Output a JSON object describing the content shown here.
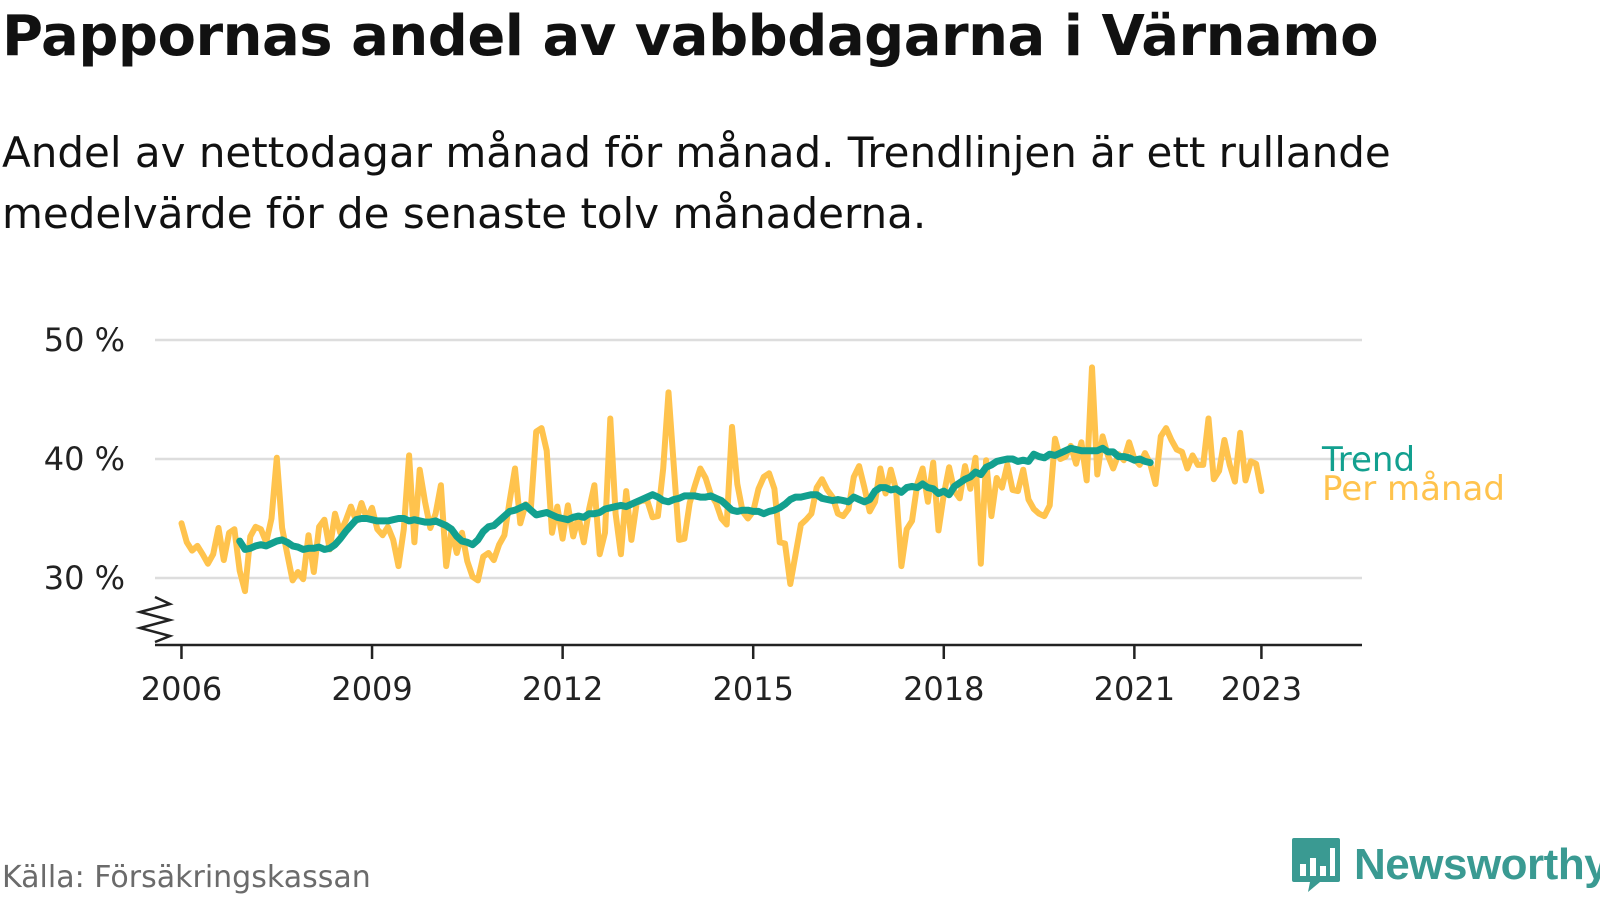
{
  "title": "Pappornas andel av vabbdagarna i Värnamo",
  "subtitle": "Andel av nettodagar månad för månad. Trendlinjen är ett rullande medelvärde för de senaste tolv månaderna.",
  "source": "Källa: Försäkringskassan",
  "brand": {
    "name": "Newsworthy",
    "color": "#3a9a92",
    "icon": "bar-chart-chat-icon"
  },
  "colors": {
    "trend": "#12a08f",
    "monthly": "#ffc34d",
    "grid": "#dddddd",
    "axis": "#222222"
  },
  "chart_data": {
    "type": "line",
    "title": "Pappornas andel av vabbdagarna i Värnamo",
    "xlabel": "",
    "ylabel": "",
    "x_ticks": [
      "2006",
      "2009",
      "2012",
      "2015",
      "2018",
      "2021",
      "2023"
    ],
    "x_tick_years": [
      2006,
      2009,
      2012,
      2015,
      2018,
      2021,
      2023
    ],
    "y_ticks": [
      "30 %",
      "40 %",
      "50 %"
    ],
    "y_tick_values": [
      30,
      40,
      50
    ],
    "ylim": [
      25,
      50
    ],
    "xlim": [
      "2005-08",
      "2024-08"
    ],
    "grid": true,
    "y_axis_broken": true,
    "series": [
      {
        "name": "Per månad",
        "start": "2006-01",
        "values": [
          34.6,
          33.0,
          32.3,
          32.7,
          32.0,
          31.2,
          32.0,
          34.2,
          31.5,
          33.8,
          34.1,
          30.6,
          28.9,
          33.5,
          34.3,
          34.1,
          33.0,
          35.0,
          40.1,
          34.2,
          32.0,
          29.8,
          30.5,
          29.9,
          33.6,
          30.5,
          34.3,
          34.9,
          32.4,
          35.4,
          33.8,
          34.8,
          36.0,
          34.8,
          36.3,
          35.0,
          35.9,
          34.1,
          33.6,
          34.3,
          33.2,
          31.0,
          34.1,
          40.3,
          33.0,
          39.1,
          36.4,
          34.2,
          35.4,
          37.8,
          31.0,
          34.0,
          32.1,
          33.8,
          31.4,
          30.1,
          29.8,
          31.8,
          32.1,
          31.5,
          32.8,
          33.6,
          36.5,
          39.2,
          34.6,
          36.2,
          35.9,
          42.3,
          42.6,
          40.7,
          33.8,
          36.0,
          33.3,
          36.1,
          33.5,
          35.1,
          33.0,
          35.8,
          37.8,
          32.0,
          33.8,
          43.4,
          35.4,
          32.0,
          37.3,
          33.2,
          36.3,
          36.5,
          36.5,
          35.1,
          35.2,
          39.2,
          45.6,
          39.4,
          33.2,
          33.3,
          36.3,
          37.8,
          39.2,
          38.4,
          37.0,
          36.3,
          35.0,
          34.5,
          42.7,
          37.9,
          35.6,
          35.0,
          35.6,
          37.5,
          38.5,
          38.8,
          37.5,
          33.0,
          32.9,
          29.5,
          32.0,
          34.5,
          34.9,
          35.4,
          37.6,
          38.3,
          37.4,
          36.8,
          35.4,
          35.2,
          35.8,
          38.5,
          39.4,
          37.6,
          35.6,
          36.4,
          39.2,
          37.1,
          39.1,
          37.4,
          31.0,
          34.1,
          34.8,
          37.9,
          39.2,
          36.4,
          39.7,
          34.0,
          37.0,
          39.3,
          37.3,
          36.7,
          39.4,
          37.5,
          40.1,
          31.2,
          39.9,
          35.2,
          38.4,
          37.6,
          39.5,
          37.4,
          37.3,
          39.1,
          36.6,
          35.8,
          35.4,
          35.2,
          36.1,
          41.7,
          40.0,
          40.2,
          41.1,
          39.6,
          41.4,
          38.2,
          47.7,
          38.7,
          41.9,
          40.3,
          39.2,
          40.4,
          39.9,
          41.4,
          40.0,
          39.5,
          40.5,
          39.6,
          37.9,
          41.9,
          42.6,
          41.6,
          40.8,
          40.6,
          39.2,
          40.3,
          39.5,
          39.5,
          43.4,
          38.3,
          39.0,
          41.6,
          39.5,
          38.1,
          42.2,
          38.2,
          39.8,
          39.6,
          37.3
        ]
      },
      {
        "name": "Trend",
        "start": "2006-12",
        "values": [
          33.1,
          32.4,
          32.5,
          32.7,
          32.8,
          32.7,
          32.9,
          33.1,
          33.2,
          33.0,
          32.7,
          32.6,
          32.4,
          32.5,
          32.5,
          32.6,
          32.4,
          32.5,
          32.8,
          33.3,
          33.9,
          34.4,
          34.9,
          35.0,
          35.0,
          34.9,
          34.8,
          34.8,
          34.8,
          34.9,
          35.0,
          35.0,
          34.8,
          34.9,
          34.8,
          34.7,
          34.7,
          34.8,
          34.6,
          34.4,
          34.1,
          33.5,
          33.1,
          33.0,
          32.8,
          33.2,
          33.9,
          34.3,
          34.4,
          34.8,
          35.2,
          35.6,
          35.7,
          35.9,
          36.1,
          35.7,
          35.3,
          35.4,
          35.5,
          35.3,
          35.1,
          35.0,
          34.9,
          35.1,
          35.2,
          35.1,
          35.4,
          35.4,
          35.5,
          35.8,
          35.9,
          36.0,
          36.1,
          36.0,
          36.2,
          36.4,
          36.6,
          36.8,
          37.0,
          36.8,
          36.5,
          36.4,
          36.6,
          36.7,
          36.9,
          36.9,
          36.9,
          36.8,
          36.8,
          36.9,
          36.7,
          36.5,
          36.1,
          35.7,
          35.6,
          35.7,
          35.7,
          35.6,
          35.6,
          35.4,
          35.6,
          35.7,
          35.9,
          36.2,
          36.6,
          36.8,
          36.8,
          36.9,
          37.0,
          37.0,
          36.7,
          36.6,
          36.5,
          36.6,
          36.5,
          36.4,
          36.8,
          36.6,
          36.4,
          36.6,
          37.3,
          37.6,
          37.6,
          37.4,
          37.5,
          37.2,
          37.6,
          37.7,
          37.6,
          37.9,
          37.6,
          37.5,
          37.1,
          37.3,
          37.0,
          37.7,
          38.0,
          38.3,
          38.5,
          38.9,
          38.7,
          39.3,
          39.5,
          39.8,
          39.9,
          40.0,
          40.0,
          39.8,
          39.9,
          39.8,
          40.4,
          40.2,
          40.1,
          40.4,
          40.3,
          40.5,
          40.7,
          40.9,
          40.8,
          40.7,
          40.7,
          40.7,
          40.7,
          40.9,
          40.6,
          40.6,
          40.2,
          40.2,
          40.1,
          39.9,
          40.0,
          39.8,
          39.7
        ]
      }
    ]
  }
}
